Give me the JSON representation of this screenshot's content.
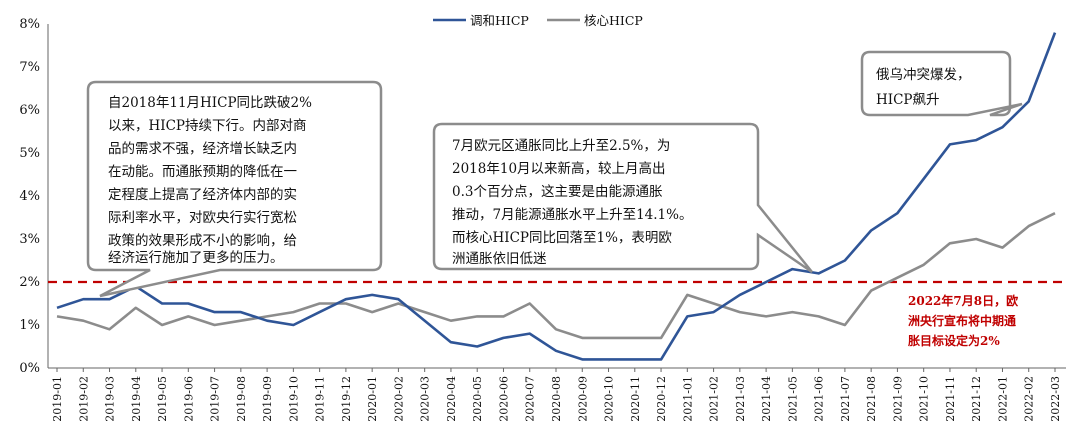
{
  "chart_data": {
    "type": "line",
    "x": [
      "2019-01",
      "2019-02",
      "2019-03",
      "2019-04",
      "2019-05",
      "2019-06",
      "2019-07",
      "2019-08",
      "2019-09",
      "2019-10",
      "2019-11",
      "2019-12",
      "2020-01",
      "2020-02",
      "2020-03",
      "2020-04",
      "2020-05",
      "2020-06",
      "2020-07",
      "2020-08",
      "2020-09",
      "2020-10",
      "2020-11",
      "2020-12",
      "2021-01",
      "2021-02",
      "2021-03",
      "2021-04",
      "2021-05",
      "2021-06",
      "2021-07",
      "2021-08",
      "2021-09",
      "2021-10",
      "2021-11",
      "2021-12",
      "2022-01",
      "2022-02",
      "2022-03"
    ],
    "series": [
      {
        "name": "调和HICP",
        "color": "#2f5597",
        "values": [
          1.4,
          1.6,
          1.6,
          1.9,
          1.5,
          1.5,
          1.3,
          1.3,
          1.1,
          1.0,
          1.3,
          1.6,
          1.7,
          1.6,
          1.1,
          0.6,
          0.5,
          0.7,
          0.8,
          0.4,
          0.2,
          0.2,
          0.2,
          0.2,
          1.2,
          1.3,
          1.7,
          2.0,
          2.3,
          2.2,
          2.5,
          3.2,
          3.6,
          4.4,
          5.2,
          5.3,
          5.6,
          6.2,
          7.8
        ]
      },
      {
        "name": "核心HICP",
        "color": "#8c8c8c",
        "values": [
          1.2,
          1.1,
          0.9,
          1.4,
          1.0,
          1.2,
          1.0,
          1.1,
          1.2,
          1.3,
          1.5,
          1.5,
          1.3,
          1.5,
          1.3,
          1.1,
          1.2,
          1.2,
          1.5,
          0.9,
          0.7,
          0.7,
          0.7,
          0.7,
          1.7,
          1.5,
          1.3,
          1.2,
          1.3,
          1.2,
          1.0,
          1.8,
          2.1,
          2.4,
          2.9,
          3.0,
          2.8,
          3.3,
          3.6
        ]
      }
    ],
    "ylim": [
      0,
      8
    ],
    "yticks": [
      "0%",
      "1%",
      "2%",
      "3%",
      "4%",
      "5%",
      "6%",
      "7%",
      "8%"
    ],
    "target_value": 2,
    "legend_position": "top-center",
    "grid": false,
    "annotations": {
      "box1": [
        "自2018年11月HICP同比跌破2%",
        "以来，HICP持续下行。内部对商",
        "品的需求不强，经济增长缺乏内",
        "在动能。而通胀预期的降低在一",
        "定程度上提高了经济体内部的实",
        "际利率水平，对欧央行实行宽松",
        "政策的效果形成不小的影响，给",
        "经济运行施加了更多的压力。"
      ],
      "box2": [
        "7月欧元区通胀同比上升至2.5%，为",
        "2018年10月以来新高，较上月高出",
        "0.3个百分点，这主要是由能源通胀",
        "推动，7月能源通胀水平上升至14.1%。",
        "而核心HICP同比回落至1%，表明欧",
        "洲通胀依旧低迷"
      ],
      "box3": [
        "俄乌冲突爆发，",
        "HICP飙升"
      ],
      "target_note": [
        "2022年7月8日，欧",
        "洲央行宣布将中期通",
        "胀目标设定为2%"
      ]
    }
  }
}
